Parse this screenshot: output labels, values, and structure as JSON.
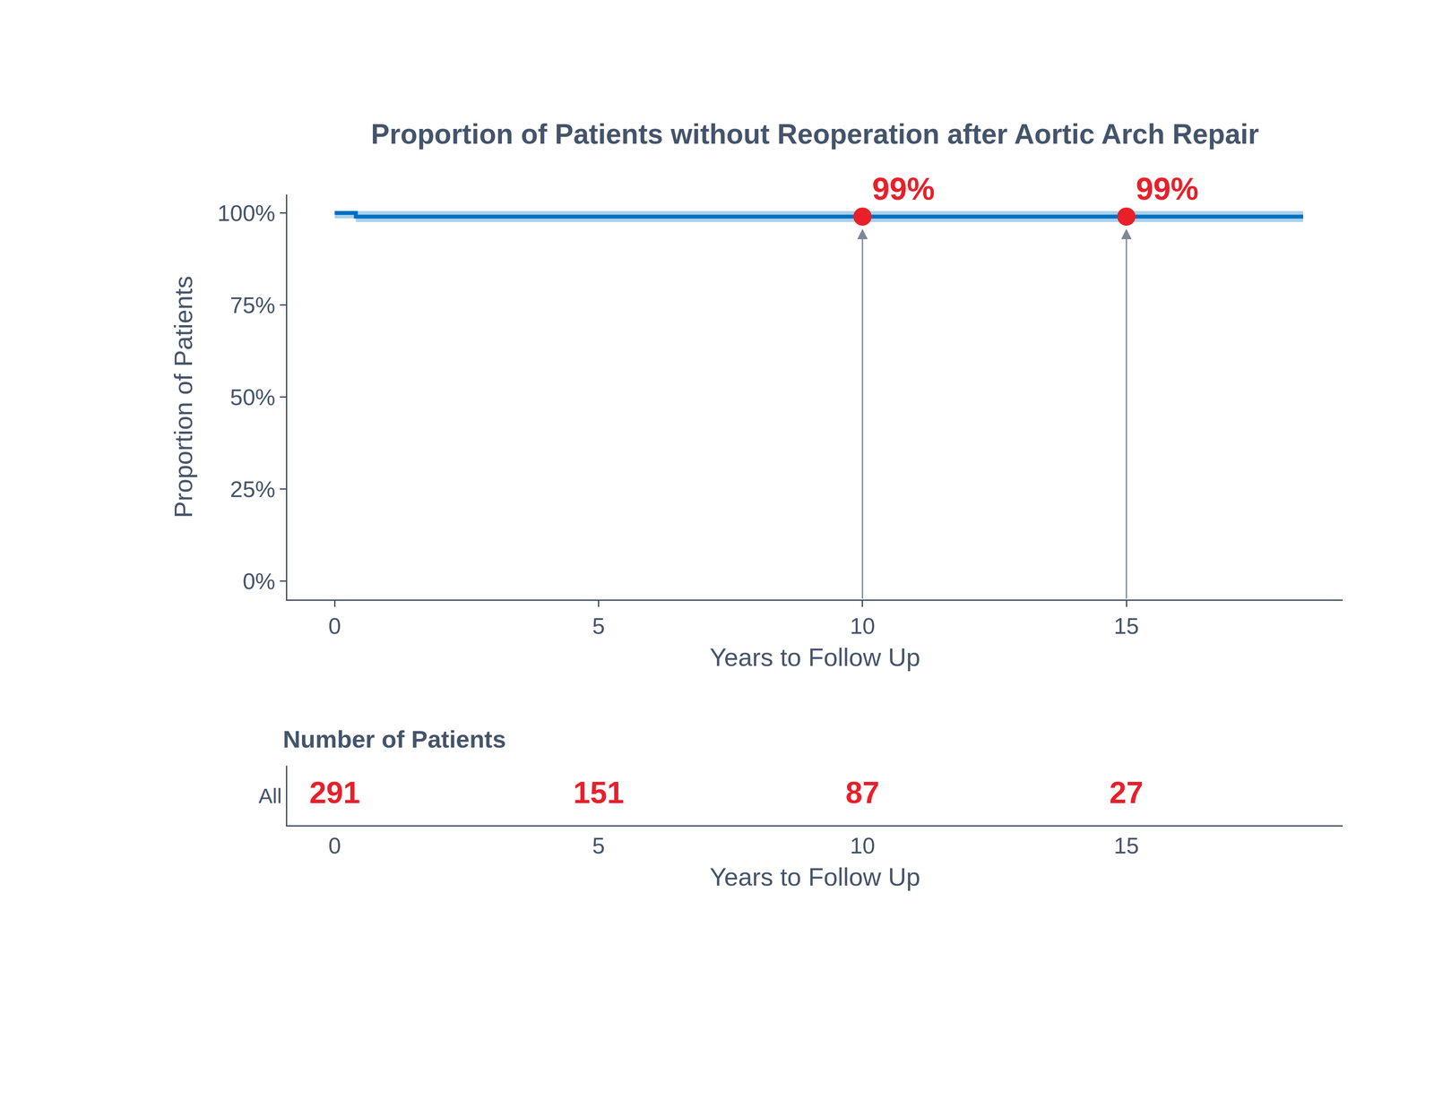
{
  "chart_data": {
    "type": "line",
    "title": "Proportion of Patients without Reoperation after Aortic Arch Repair",
    "xlabel": "Years to Follow Up",
    "ylabel": "Proportion of Patients",
    "x": [
      0,
      0.4,
      18.35
    ],
    "values": [
      100,
      99,
      99
    ],
    "ci_lower": [
      98.5,
      97.5,
      97.5
    ],
    "ci_upper": [
      100.5,
      100.5,
      100.5
    ],
    "color": "#0070c0",
    "line_style": "step",
    "marker": "circle",
    "xlim": [
      -0.9,
      19.1
    ],
    "xticks": [
      0,
      5,
      10,
      15
    ],
    "ylim": [
      -5,
      105
    ],
    "yticks": [
      {
        "value": 0,
        "label": "0%"
      },
      {
        "value": 25,
        "label": "25%"
      },
      {
        "value": 50,
        "label": "50%"
      },
      {
        "value": 75,
        "label": "75%"
      },
      {
        "value": 100,
        "label": "100%"
      }
    ],
    "grid": false,
    "annotations": [
      {
        "x": 10,
        "y": 99,
        "text": "99%",
        "color": "#e8202a"
      },
      {
        "x": 15,
        "y": 99,
        "text": "99%",
        "color": "#e8202a"
      }
    ],
    "risk_table": {
      "title": "Number of Patients",
      "row_label": "All",
      "xlabel": "Years to Follow Up",
      "x": [
        0,
        5,
        10,
        15
      ],
      "values": [
        291,
        151,
        87,
        27
      ],
      "color": "#e8202a"
    }
  }
}
